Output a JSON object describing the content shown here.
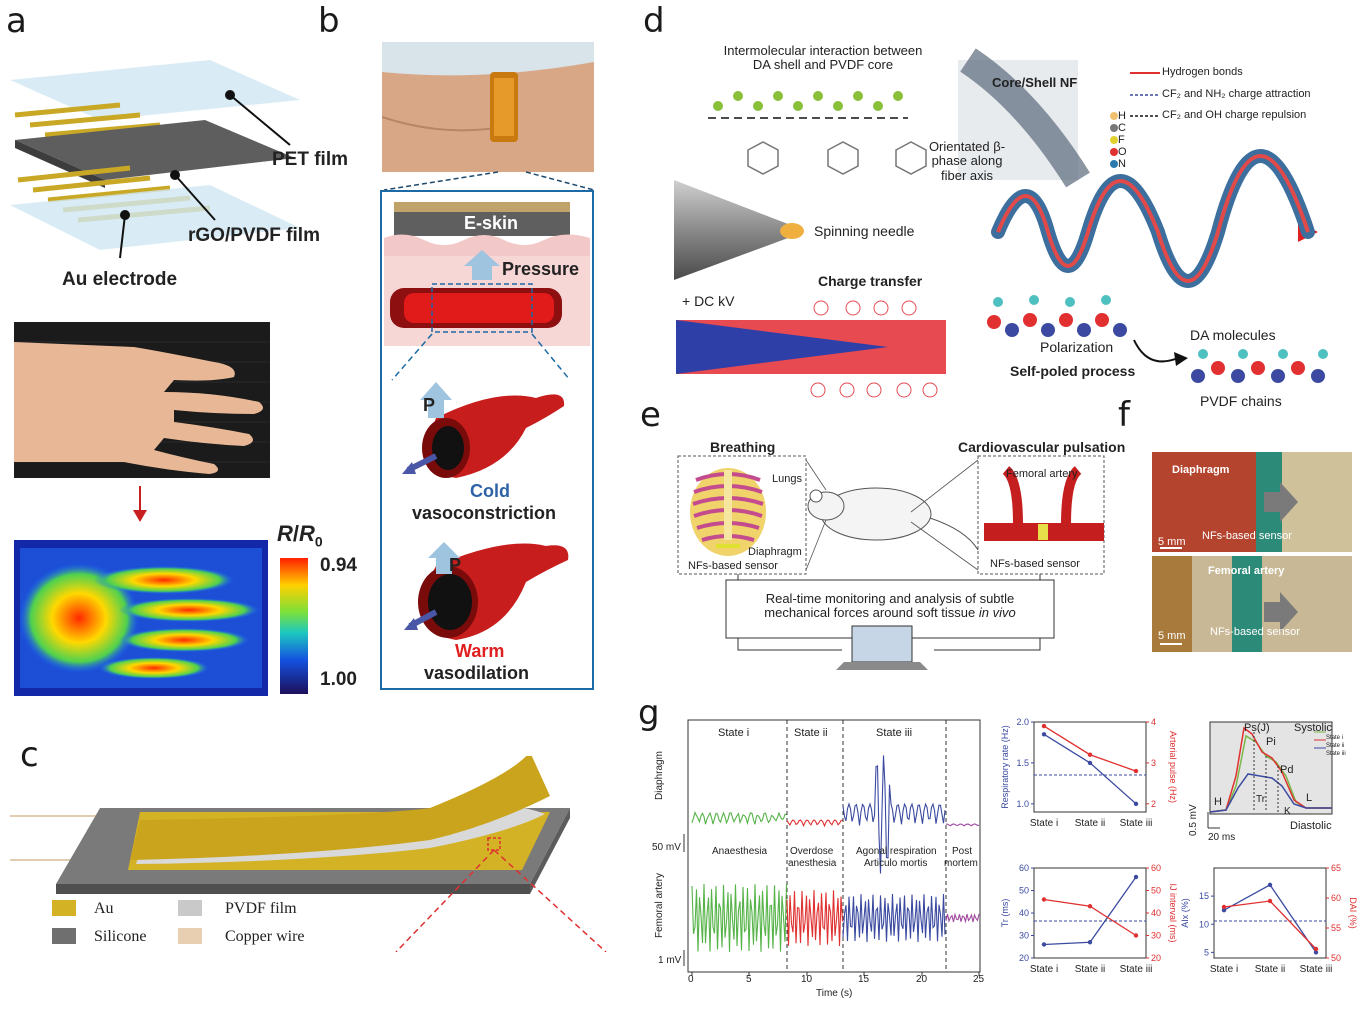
{
  "panels": [
    "a",
    "b",
    "c",
    "d",
    "e",
    "f",
    "g"
  ],
  "a": {
    "pet_film": "PET film",
    "rgo_film": "rGO/PVDF film",
    "au_electrode": "Au electrode",
    "colorbar_title_r": "R",
    "colorbar_title_slash": "/",
    "colorbar_title_r0": "R",
    "colorbar_title_sub": "0",
    "colorbar_max": "0.94",
    "colorbar_min": "1.00"
  },
  "b": {
    "eskin": "E-skin",
    "pressure": "Pressure",
    "p1": "P",
    "p2": "P",
    "cold": "Cold",
    "vasoconstriction": "vasoconstriction",
    "warm": "Warm",
    "vasodilation": "vasodilation"
  },
  "c": {
    "legend": [
      "Au",
      "PVDF film",
      "Silicone",
      "Copper wire"
    ],
    "colors": {
      "au": "#d4b226",
      "pvdf": "#c9c9c9",
      "silicone": "#6f6f6f",
      "copper": "#e8cfb2"
    }
  },
  "d": {
    "intermolecular_line1": "Intermolecular interaction between",
    "intermolecular_line2": "DA shell and PVDF core",
    "core_shell": "Core/Shell NF",
    "legend_hydrogen": "Hydrogen bonds",
    "legend_attraction": "CF₂ and NH₂ charge attraction",
    "legend_repulsion": "CF₂ and OH charge repulsion",
    "atoms": [
      "H",
      "C",
      "F",
      "O",
      "N"
    ],
    "oriented_line1": "Orientated β-",
    "oriented_line2": "phase along",
    "oriented_line3": "fiber axis",
    "spinning_needle": "Spinning needle",
    "dc_kv": "+ DC kV",
    "charge_transfer": "Charge transfer",
    "polarization": "Polarization",
    "self_poled": "Self-poled process",
    "da_molecules": "DA molecules",
    "pvdf_chains": "PVDF chains"
  },
  "e": {
    "breathing": "Breathing",
    "cardio": "Cardiovascular pulsation",
    "lungs": "Lungs",
    "diaphragm": "Diaphragm",
    "nfs_sensor_left": "NFs-based sensor",
    "femoral_artery": "Femoral artery",
    "nfs_sensor_right": "NFs-based sensor",
    "monitor_line1": "Real-time monitoring and analysis of subtle",
    "monitor_line2": "mechanical forces around soft tissue ",
    "monitor_italic": "in vivo"
  },
  "f": {
    "diaphragm": "Diaphragm",
    "nfs_top": "NFs-based sensor",
    "scale_top": "5 mm",
    "femoral": "Femoral artery",
    "nfs_bottom": "NFs-based sensor",
    "scale_bottom": "5 mm"
  },
  "g": {
    "states": [
      "State i",
      "State ii",
      "State iii"
    ],
    "diaphragm_ylabel": "Diaphragm",
    "femoral_ylabel": "Femoral artery",
    "scale_50mv": "50 mV",
    "scale_1mv": "1 mV",
    "phase_labels": [
      "Anaesthesia",
      "Overdose",
      "anesthesia",
      "Agonal respiration",
      "Articulo mortis",
      "Post",
      "mortem"
    ],
    "xlabel": "Time (s)",
    "xticks": [
      "0",
      "5",
      "10",
      "15",
      "20",
      "25"
    ],
    "scale_05mv": "0.5 mV",
    "scale_20ms": "20 ms",
    "pulse_labels": [
      "Ps(J)",
      "Pi",
      "Pd",
      "Tr",
      "K",
      "L",
      "H",
      "Systolic",
      "Diastolic"
    ],
    "pulse_legend": [
      "State i",
      "State ii",
      "State iii"
    ]
  },
  "chart_data": [
    {
      "type": "line",
      "categories": [
        "State i",
        "State ii",
        "State iii"
      ],
      "series": [
        {
          "name": "Respiratory rate (Hz)",
          "values": [
            1.85,
            1.5,
            1.0
          ],
          "color": "#3b4aa0"
        },
        {
          "name": "Arterial pulse (Hz)",
          "values": [
            3.9,
            3.2,
            2.8
          ],
          "color": "#e03030"
        }
      ],
      "ylabel": "Respiratory rate (Hz)",
      "ylim": [
        0.9,
        2.0
      ],
      "yticks": [
        "1.0",
        "1.5",
        "2.0"
      ],
      "y2label": "Arterial pulse (Hz)",
      "y2lim": [
        1.8,
        4.0
      ],
      "y2ticks": [
        "2",
        "3",
        "4"
      ]
    },
    {
      "type": "line",
      "categories": [
        "State i",
        "State ii",
        "State iii"
      ],
      "series": [
        {
          "name": "Tr (ms)",
          "values": [
            26,
            27,
            56
          ],
          "color": "#3b4aa0"
        },
        {
          "name": "IJ interval (ms)",
          "values": [
            46,
            43,
            30
          ],
          "color": "#e03030"
        }
      ],
      "ylabel": "Tr (ms)",
      "ylim": [
        20,
        60
      ],
      "yticks": [
        "20",
        "30",
        "40",
        "50",
        "60"
      ],
      "y2label": "IJ interval (ms)",
      "y2lim": [
        20,
        60
      ],
      "y2ticks": [
        "20",
        "30",
        "40",
        "50",
        "60"
      ]
    },
    {
      "type": "line",
      "categories": [
        "State i",
        "State ii",
        "State iii"
      ],
      "series": [
        {
          "name": "AIx (%)",
          "values": [
            12.5,
            17,
            5
          ],
          "color": "#3b4aa0"
        },
        {
          "name": "DAI (%)",
          "values": [
            58.5,
            59.5,
            51.5
          ],
          "color": "#e03030"
        }
      ],
      "ylabel": "AIx (%)",
      "ylim": [
        4,
        20
      ],
      "yticks": [
        "5",
        "10",
        "15"
      ],
      "y2label": "DAI (%)",
      "y2lim": [
        50,
        65
      ],
      "y2ticks": [
        "50",
        "55",
        "60",
        "65"
      ]
    }
  ]
}
